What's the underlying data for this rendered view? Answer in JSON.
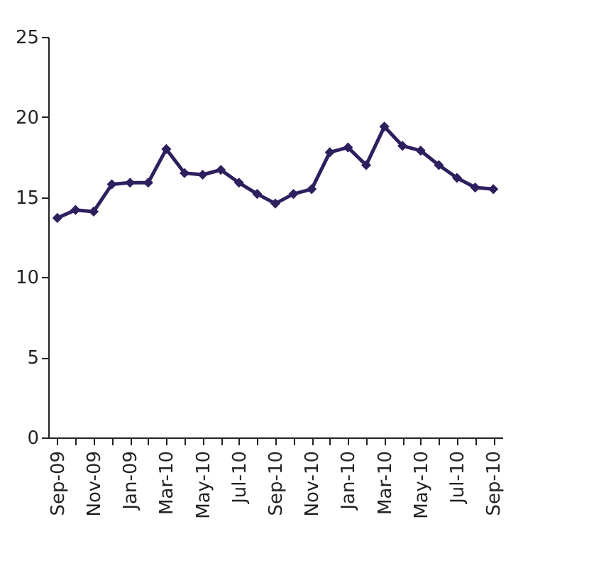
{
  "chart_data": {
    "type": "line",
    "categories": [
      "Sep-09",
      null,
      "Nov-09",
      null,
      "Jan-09",
      null,
      "Mar-10",
      null,
      "May-10",
      null,
      "Jul-10",
      null,
      "Sep-10",
      null,
      "Nov-10",
      null,
      "Jan-10",
      null,
      "Mar-10",
      null,
      "May-10",
      null,
      "Jul-10",
      null,
      "Sep-10"
    ],
    "series": [
      {
        "color": "#2e1f5e",
        "values": [
          13.7,
          14.2,
          14.1,
          15.8,
          15.9,
          15.9,
          18.0,
          16.5,
          16.4,
          16.7,
          15.9,
          15.2,
          14.6,
          15.2,
          15.5,
          17.8,
          18.1,
          17.0,
          19.4,
          18.2,
          17.9,
          17.0,
          16.2,
          15.6,
          15.5
        ]
      }
    ],
    "ylim": [
      0,
      25
    ],
    "yticks": [
      0,
      5,
      10,
      15,
      20,
      25
    ],
    "grid": false,
    "marker": "diamond",
    "line_style": "solid"
  }
}
